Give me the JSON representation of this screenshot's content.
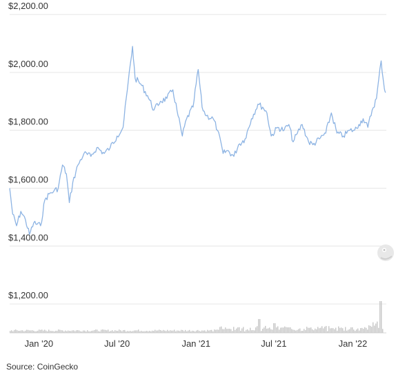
{
  "source": "Source: CoinGecko",
  "chart_data": {
    "type": "line",
    "title": "",
    "xlabel": "",
    "ylabel": "",
    "ylim": [
      1100,
      2200
    ],
    "y_ticks": [
      1200,
      1400,
      1600,
      1800,
      2000,
      2200
    ],
    "y_tick_labels": [
      "$1,200.00",
      "$1,400.00",
      "$1,600.00",
      "$1,800.00",
      "$2,000.00",
      "$2,200.00"
    ],
    "x_ticks": [
      "2020-01-01",
      "2020-07-01",
      "2021-01-01",
      "2021-07-01",
      "2022-01-01"
    ],
    "x_tick_labels": [
      "Jan '20",
      "Jul '20",
      "Jan '21",
      "Jul '21",
      "Jan '22"
    ],
    "grid": true,
    "line_color": "#8cb3e3",
    "volume_color": "#c7c7c7",
    "series": [
      {
        "points": [
          [
            "2019-10-25",
            1600
          ],
          [
            "2019-11-01",
            1510
          ],
          [
            "2019-11-10",
            1470
          ],
          [
            "2019-11-20",
            1520
          ],
          [
            "2019-12-01",
            1490
          ],
          [
            "2019-12-10",
            1440
          ],
          [
            "2019-12-20",
            1480
          ],
          [
            "2020-01-05",
            1470
          ],
          [
            "2020-01-15",
            1560
          ],
          [
            "2020-01-25",
            1580
          ],
          [
            "2020-02-05",
            1590
          ],
          [
            "2020-02-15",
            1600
          ],
          [
            "2020-02-25",
            1680
          ],
          [
            "2020-03-05",
            1650
          ],
          [
            "2020-03-12",
            1550
          ],
          [
            "2020-03-20",
            1620
          ],
          [
            "2020-04-01",
            1680
          ],
          [
            "2020-04-15",
            1720
          ],
          [
            "2020-05-01",
            1710
          ],
          [
            "2020-05-15",
            1740
          ],
          [
            "2020-06-01",
            1720
          ],
          [
            "2020-06-15",
            1740
          ],
          [
            "2020-07-01",
            1780
          ],
          [
            "2020-07-15",
            1810
          ],
          [
            "2020-07-25",
            1940
          ],
          [
            "2020-08-06",
            2090
          ],
          [
            "2020-08-12",
            1980
          ],
          [
            "2020-08-25",
            1960
          ],
          [
            "2020-09-10",
            1920
          ],
          [
            "2020-09-25",
            1870
          ],
          [
            "2020-10-10",
            1900
          ],
          [
            "2020-10-25",
            1910
          ],
          [
            "2020-11-08",
            1940
          ],
          [
            "2020-11-20",
            1850
          ],
          [
            "2020-11-30",
            1780
          ],
          [
            "2020-12-10",
            1840
          ],
          [
            "2020-12-25",
            1880
          ],
          [
            "2021-01-06",
            2010
          ],
          [
            "2021-01-15",
            1880
          ],
          [
            "2021-01-25",
            1850
          ],
          [
            "2021-02-10",
            1840
          ],
          [
            "2021-02-20",
            1800
          ],
          [
            "2021-03-05",
            1720
          ],
          [
            "2021-03-15",
            1730
          ],
          [
            "2021-03-30",
            1710
          ],
          [
            "2021-04-10",
            1750
          ],
          [
            "2021-04-25",
            1770
          ],
          [
            "2021-05-10",
            1840
          ],
          [
            "2021-05-25",
            1890
          ],
          [
            "2021-06-05",
            1880
          ],
          [
            "2021-06-15",
            1860
          ],
          [
            "2021-06-25",
            1780
          ],
          [
            "2021-07-10",
            1810
          ],
          [
            "2021-07-25",
            1800
          ],
          [
            "2021-08-05",
            1820
          ],
          [
            "2021-08-15",
            1760
          ],
          [
            "2021-08-25",
            1790
          ],
          [
            "2021-09-05",
            1820
          ],
          [
            "2021-09-20",
            1760
          ],
          [
            "2021-09-30",
            1750
          ],
          [
            "2021-10-15",
            1770
          ],
          [
            "2021-10-30",
            1790
          ],
          [
            "2021-11-12",
            1860
          ],
          [
            "2021-11-25",
            1790
          ],
          [
            "2021-12-10",
            1780
          ],
          [
            "2021-12-25",
            1800
          ],
          [
            "2022-01-05",
            1800
          ],
          [
            "2022-01-15",
            1820
          ],
          [
            "2022-01-25",
            1840
          ],
          [
            "2022-02-05",
            1810
          ],
          [
            "2022-02-15",
            1870
          ],
          [
            "2022-02-25",
            1910
          ],
          [
            "2022-03-08",
            2040
          ],
          [
            "2022-03-14",
            1960
          ],
          [
            "2022-03-18",
            1930
          ]
        ]
      }
    ]
  }
}
